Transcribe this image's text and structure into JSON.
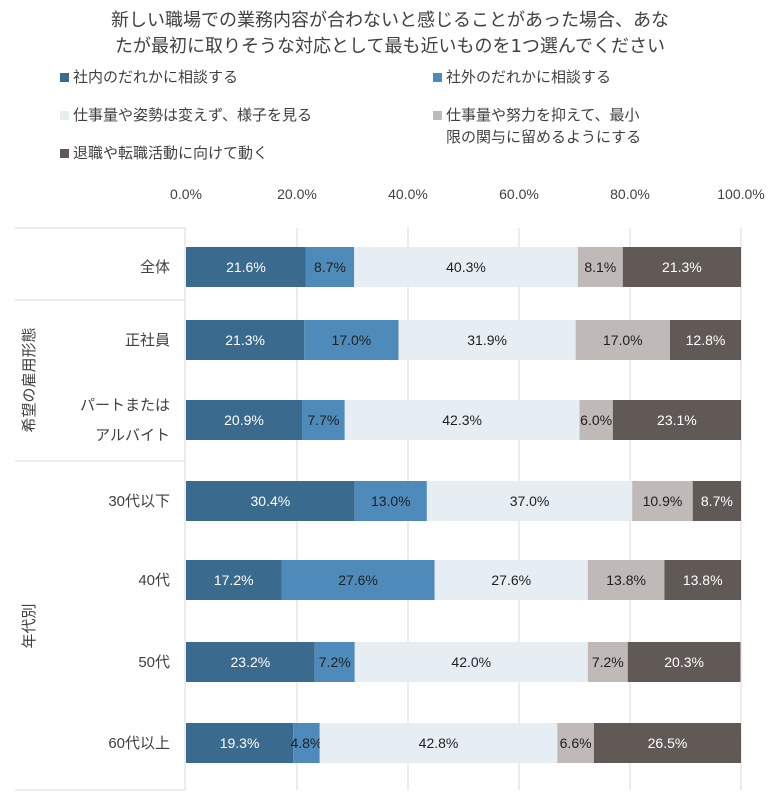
{
  "chart_data": {
    "type": "bar",
    "orientation": "horizontal",
    "stacked": true,
    "title": "新しい職場での業務内容が合わないと感じることがあった場合、あなたが最初に取りそうな対応として最も近いものを1つ選んでください",
    "title_lines": [
      "新しい職場での業務内容が合わないと感じることがあった場合、あな",
      "たが最初に取りそうな対応として最も近いものを1つ選んでください"
    ],
    "xlim": [
      0,
      100
    ],
    "x_ticks": [
      "0.0%",
      "20.0%",
      "40.0%",
      "60.0%",
      "80.0%",
      "100.0%"
    ],
    "grid": true,
    "legend_position": "top",
    "categories": [
      "全体",
      "正社員",
      "パートまたはアルバイト",
      "30代以下",
      "40代",
      "50代",
      "60代以上"
    ],
    "category_lines": [
      [
        "全体"
      ],
      [
        "正社員"
      ],
      [
        "パートまたは",
        "アルバイト"
      ],
      [
        "30代以下"
      ],
      [
        "40代"
      ],
      [
        "50代"
      ],
      [
        "60代以上"
      ]
    ],
    "groups": [
      {
        "label": "希望の雇用形態",
        "categories": [
          "正社員",
          "パートまたはアルバイト"
        ]
      },
      {
        "label": "年代別",
        "categories": [
          "30代以下",
          "40代",
          "50代",
          "60代以上"
        ]
      }
    ],
    "series": [
      {
        "name": "社内のだれかに相談する",
        "color": "#3b6a8f",
        "label_color": "#ffffff",
        "values": [
          21.6,
          21.3,
          20.9,
          30.4,
          17.2,
          23.2,
          19.3
        ]
      },
      {
        "name": "社外のだれかに相談する",
        "color": "#4f8bba",
        "label_color": "#1f1f1f",
        "values": [
          8.7,
          17.0,
          7.7,
          13.0,
          27.6,
          7.2,
          4.8
        ]
      },
      {
        "name": "仕事量や姿勢は変えず、様子を見る",
        "color": "#e6eef4",
        "label_color": "#1f1f1f",
        "values": [
          40.3,
          31.9,
          42.3,
          37.0,
          27.6,
          42.0,
          42.8
        ]
      },
      {
        "name": "仕事量や努力を抑えて、最小限の関与に留めるようにする",
        "name_lines": [
          "仕事量や努力を抑えて、最小",
          "限の関与に留めるようにする"
        ],
        "color": "#bfbab8",
        "label_color": "#1f1f1f",
        "values": [
          8.1,
          17.0,
          6.0,
          10.9,
          13.8,
          7.2,
          6.6
        ]
      },
      {
        "name": "退職や転職活動に向けて動く",
        "color": "#615956",
        "label_color": "#ffffff",
        "values": [
          21.3,
          12.8,
          23.1,
          8.7,
          13.8,
          20.3,
          26.5
        ]
      }
    ]
  }
}
